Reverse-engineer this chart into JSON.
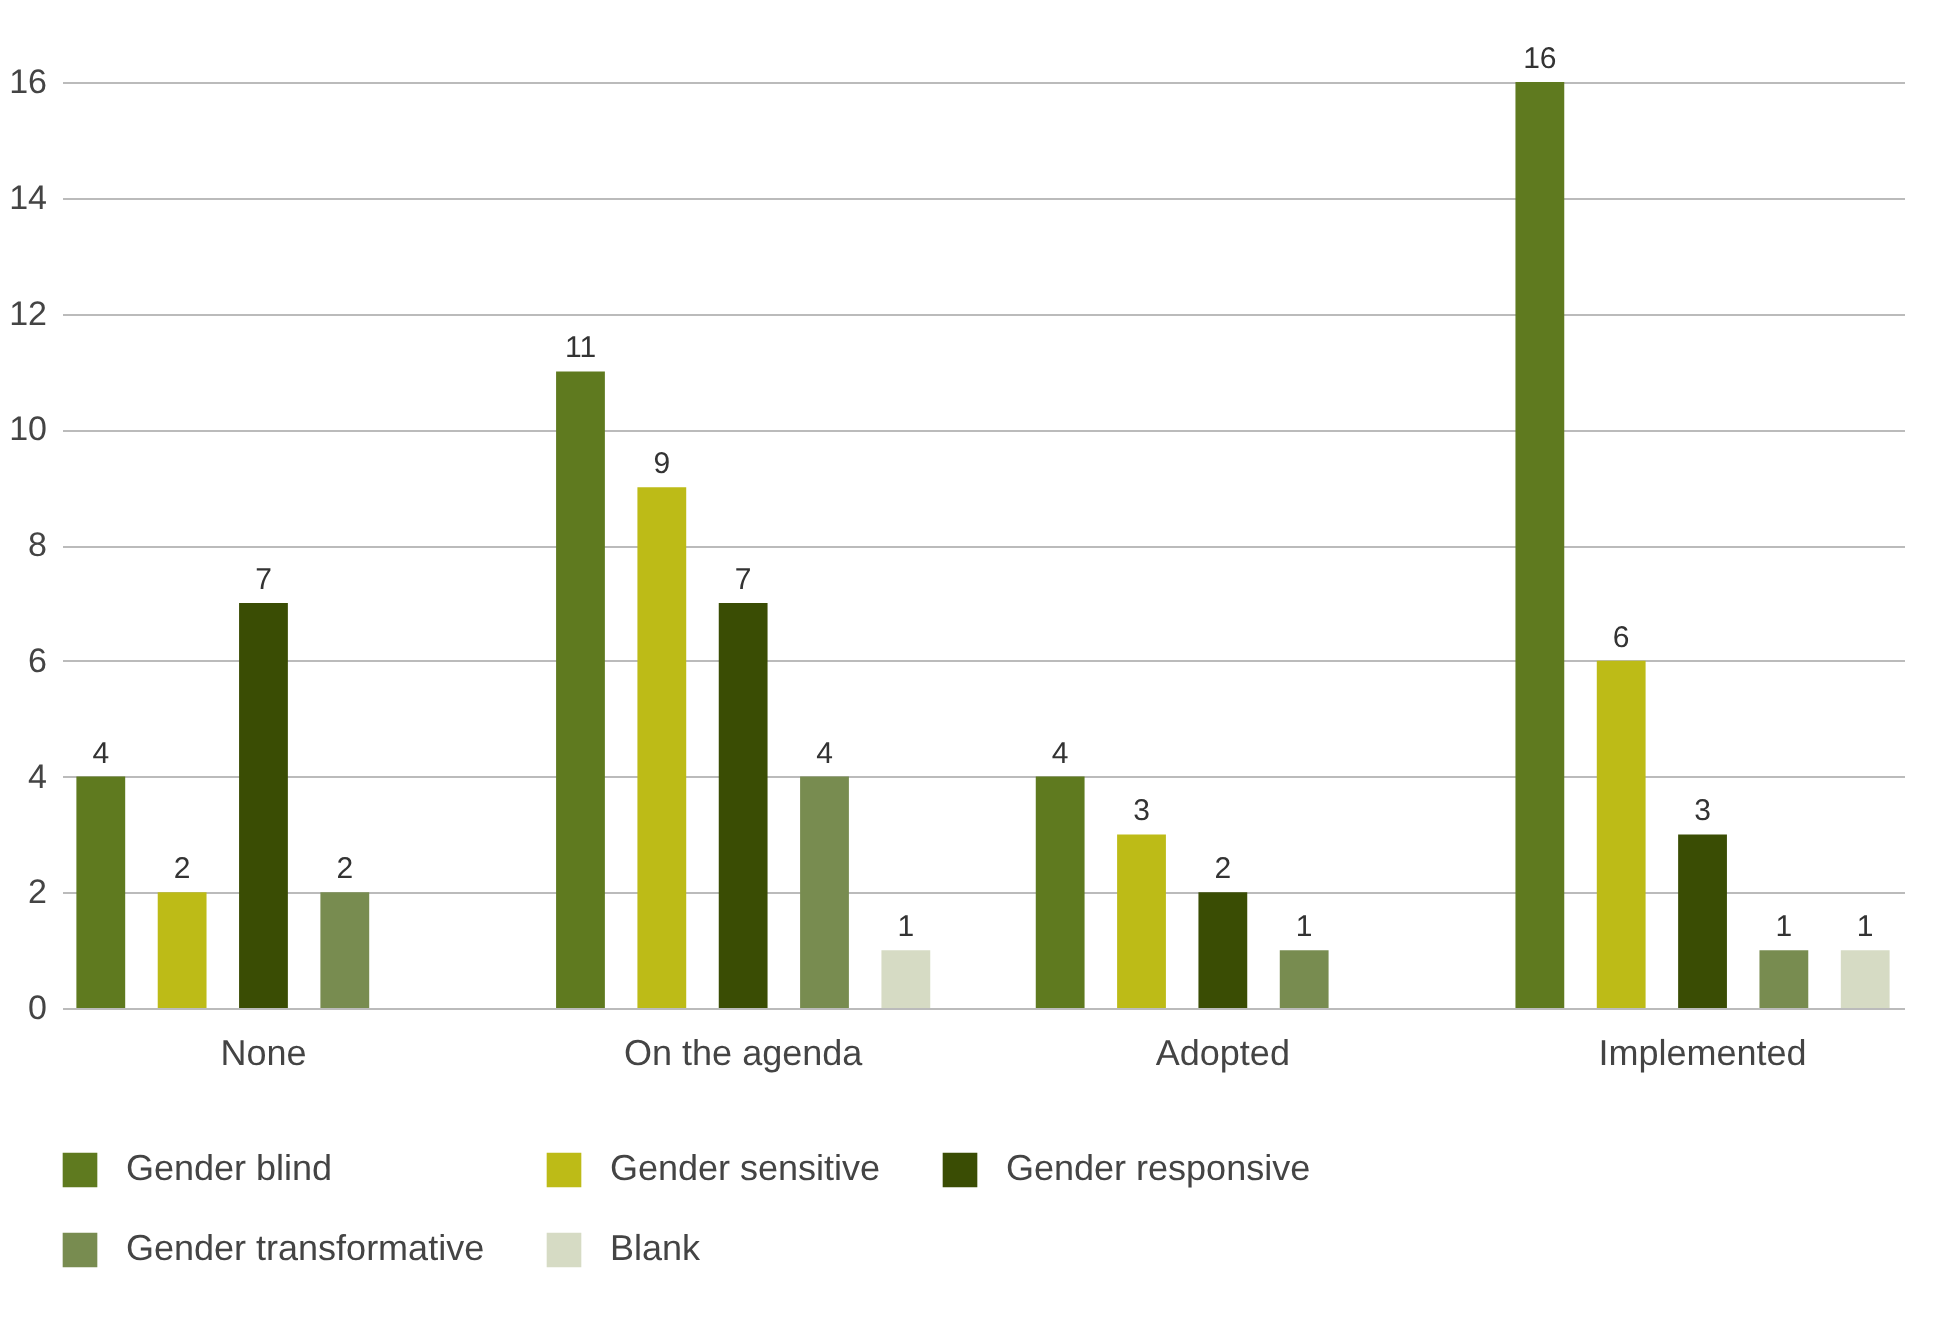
{
  "chart_data": {
    "type": "bar",
    "categories": [
      "None",
      "On the agenda",
      "Adopted",
      "Implemented"
    ],
    "series": [
      {
        "name": "Gender blind",
        "color": "#5f7a1f",
        "values": [
          4,
          11,
          4,
          16
        ]
      },
      {
        "name": "Gender sensitive",
        "color": "#bdbb17",
        "values": [
          2,
          9,
          3,
          6
        ]
      },
      {
        "name": "Gender responsive",
        "color": "#3a4d04",
        "values": [
          7,
          7,
          2,
          3
        ]
      },
      {
        "name": "Gender transformative",
        "color": "#788c50",
        "values": [
          2,
          4,
          1,
          1
        ]
      },
      {
        "name": "Blank",
        "color": "#d6dbc4",
        "values": [
          null,
          1,
          null,
          1
        ]
      }
    ],
    "ylim": [
      0,
      16
    ],
    "yticks": [
      0,
      2,
      4,
      6,
      8,
      10,
      12,
      14,
      16
    ],
    "grid": "y",
    "legend": "bottom",
    "data_labels": true
  }
}
